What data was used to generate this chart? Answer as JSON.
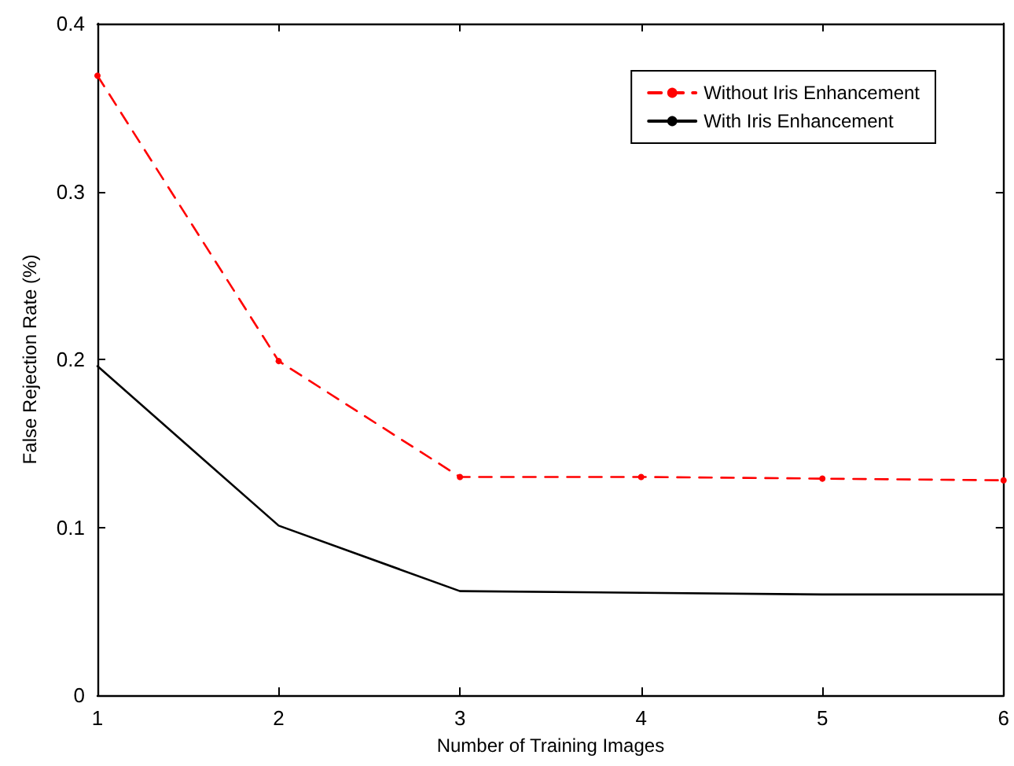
{
  "chart_data": {
    "type": "line",
    "xlabel": "Number of Training Images",
    "ylabel": "False Rejection Rate (%)",
    "x": [
      1,
      2,
      3,
      4,
      5,
      6
    ],
    "xlim": [
      1,
      6
    ],
    "xticks": [
      1,
      2,
      3,
      4,
      5,
      6
    ],
    "ylim": [
      0,
      0.4
    ],
    "yticks": [
      0,
      0.1,
      0.2,
      0.3,
      0.4
    ],
    "grid": false,
    "legend": "top right",
    "series": [
      {
        "name": "Without Iris Enhancement",
        "color": "#ff0000",
        "line_style": "dashed",
        "marker": "circle",
        "values": [
          0.369,
          0.199,
          0.13,
          0.13,
          0.129,
          0.128
        ]
      },
      {
        "name": "With Iris Enhancement",
        "color": "#000000",
        "line_style": "solid",
        "marker": "none",
        "values": [
          0.196,
          0.101,
          0.062,
          0.061,
          0.06,
          0.06
        ]
      }
    ]
  }
}
